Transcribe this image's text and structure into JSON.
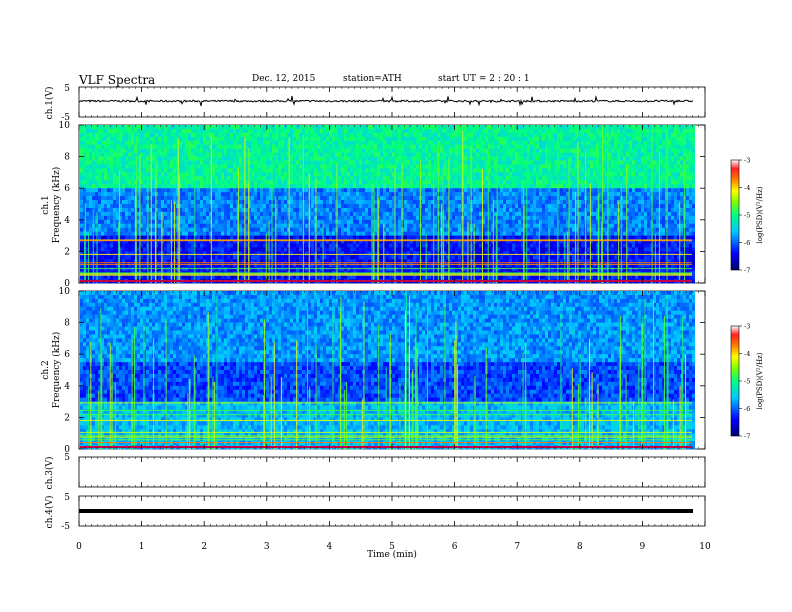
{
  "header": {
    "title": "VLF  Spectra",
    "date": "Dec. 12, 2015",
    "station": "station=ATH",
    "start": "start  UT  =   2  : 20 : 1"
  },
  "chart_data": [
    {
      "id": "ch1",
      "type": "line",
      "ylabel": "ch.1(V)",
      "ylim": [
        -5,
        5
      ],
      "yticks": [
        "5",
        "-5"
      ],
      "series": [
        {
          "values_description_omitted": true
        }
      ],
      "level": 0.3
    },
    {
      "id": "ch1-spec",
      "type": "heatmap",
      "ylabel": "ch.1\nFrequency (kHz)",
      "ylim": [
        0,
        10
      ],
      "yticks": [
        "0",
        "2",
        "4",
        "6",
        "8",
        "10"
      ],
      "colorbar": {
        "label": "log(PSD)(V²/Hz)",
        "ticks": [
          "-3",
          "-4",
          "-5",
          "-6",
          "-7"
        ],
        "range": [
          -7,
          -3
        ]
      }
    },
    {
      "id": "ch2-spec",
      "type": "heatmap",
      "ylabel": "ch.2\nFrequency (kHz)",
      "ylim": [
        0,
        10
      ],
      "yticks": [
        "0",
        "2",
        "4",
        "6",
        "8",
        "10"
      ],
      "colorbar": {
        "label": "log(PSD)(V²/Hz)",
        "ticks": [
          "-3",
          "-4",
          "-5",
          "-6",
          "-7"
        ],
        "range": [
          -7,
          -3
        ]
      }
    },
    {
      "id": "ch3",
      "type": "line",
      "ylabel": "ch.3(V)",
      "ylim": [
        -5,
        5
      ],
      "yticks": [
        "5"
      ]
    },
    {
      "id": "ch4",
      "type": "line",
      "ylabel": "ch.4(V)",
      "ylim": [
        -5,
        5
      ],
      "yticks": [
        "5",
        "-5"
      ],
      "level": -0.2
    }
  ],
  "xaxis": {
    "label": "Time  (min)",
    "xlim": [
      0,
      10
    ],
    "ticks": [
      "0",
      "1",
      "2",
      "3",
      "4",
      "5",
      "6",
      "7",
      "8",
      "9",
      "10"
    ]
  }
}
